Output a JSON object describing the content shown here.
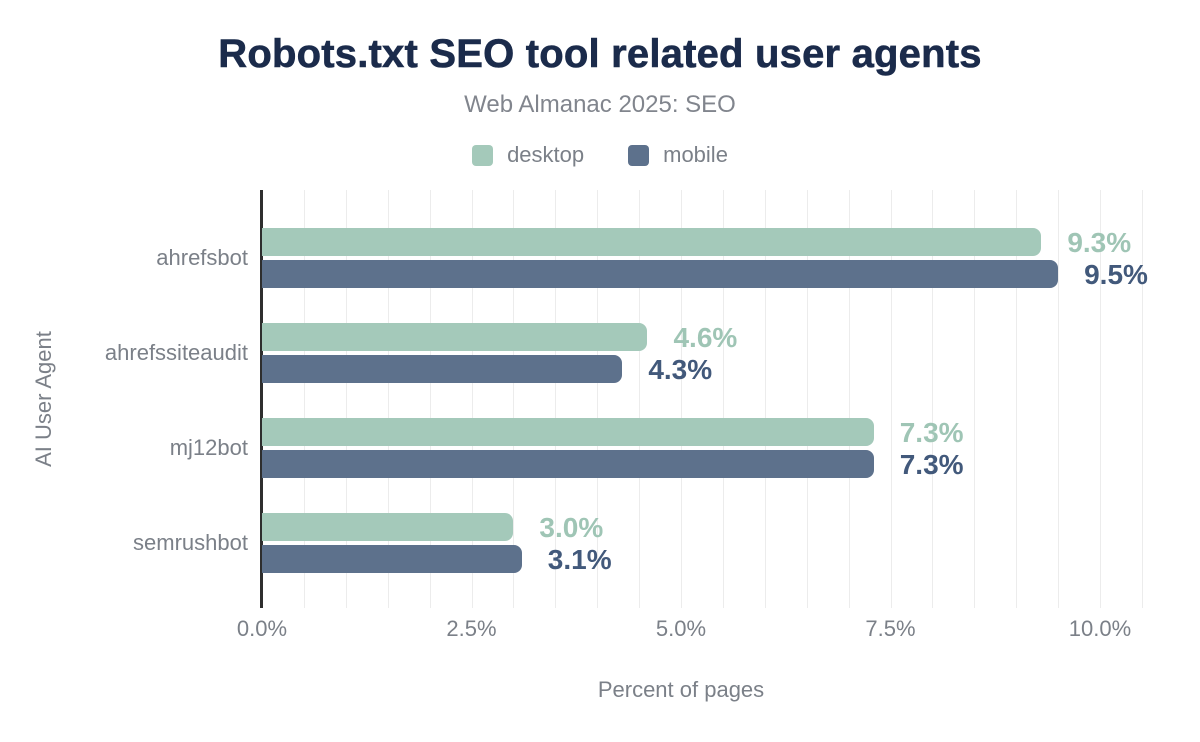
{
  "chart_data": {
    "type": "bar",
    "orientation": "horizontal",
    "title": "Robots.txt SEO tool related user agents",
    "subtitle": "Web Almanac 2025: SEO",
    "xlabel": "Percent of pages",
    "ylabel": "AI User Agent",
    "categories": [
      "ahrefsbot",
      "ahrefssiteaudit",
      "mj12bot",
      "semrushbot"
    ],
    "series": [
      {
        "name": "desktop",
        "color": "#a4c9ba",
        "label_color": "#9fc5b5",
        "values": [
          9.3,
          4.6,
          7.3,
          3.0
        ],
        "value_labels": [
          "9.3%",
          "4.6%",
          "7.3%",
          "3.0%"
        ]
      },
      {
        "name": "mobile",
        "color": "#5d718c",
        "label_color": "#42597b",
        "values": [
          9.5,
          4.3,
          7.3,
          3.1
        ],
        "value_labels": [
          "9.5%",
          "4.3%",
          "7.3%",
          "3.1%"
        ]
      }
    ],
    "x_ticks": [
      {
        "value": 0.0,
        "label": "0.0%"
      },
      {
        "value": 2.5,
        "label": "2.5%"
      },
      {
        "value": 5.0,
        "label": "5.0%"
      },
      {
        "value": 7.5,
        "label": "7.5%"
      },
      {
        "value": 10.0,
        "label": "10.0%"
      }
    ],
    "xlim": [
      0,
      10.5
    ],
    "grid": {
      "step": 0.5,
      "color": "#ececec",
      "visible": true
    },
    "axis_color": "#2e2e2e",
    "legend_position": "top",
    "background": "#ffffff",
    "title_color": "#1b2b4b",
    "muted_text_color": "#7b8088"
  }
}
